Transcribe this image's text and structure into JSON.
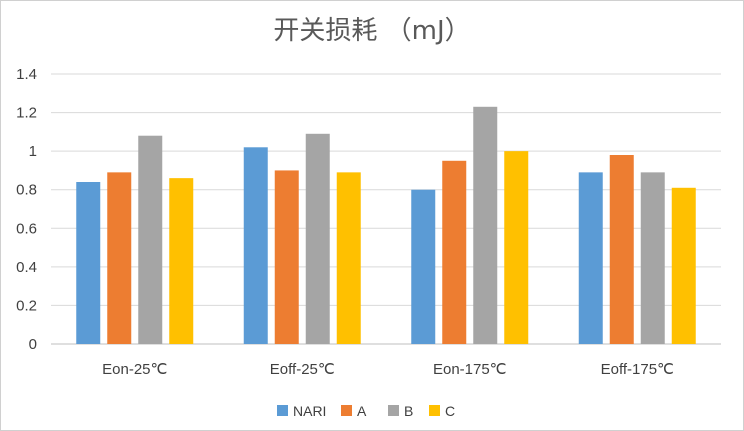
{
  "chart_data": {
    "type": "bar",
    "title": "开关损耗 （mJ）",
    "xlabel": "",
    "ylabel": "",
    "ylim": [
      0,
      1.4
    ],
    "yticks": [
      "0",
      "0.2",
      "0.4",
      "0.6",
      "0.8",
      "1",
      "1.2",
      "1.4"
    ],
    "categories": [
      "Eon-25℃",
      "Eoff-25℃",
      "Eon-175℃",
      "Eoff-175℃"
    ],
    "series": [
      {
        "name": "NARI",
        "color": "#5B9BD5",
        "values": [
          0.84,
          1.02,
          0.8,
          0.89
        ]
      },
      {
        "name": "A",
        "color": "#ED7D31",
        "values": [
          0.89,
          0.9,
          0.95,
          0.98
        ]
      },
      {
        "name": "B",
        "color": "#A5A5A5",
        "values": [
          1.08,
          1.09,
          1.23,
          0.89
        ]
      },
      {
        "name": "C",
        "color": "#FFC000",
        "values": [
          0.86,
          0.89,
          1.0,
          0.81
        ]
      }
    ],
    "grid": true,
    "legend_position": "bottom"
  }
}
